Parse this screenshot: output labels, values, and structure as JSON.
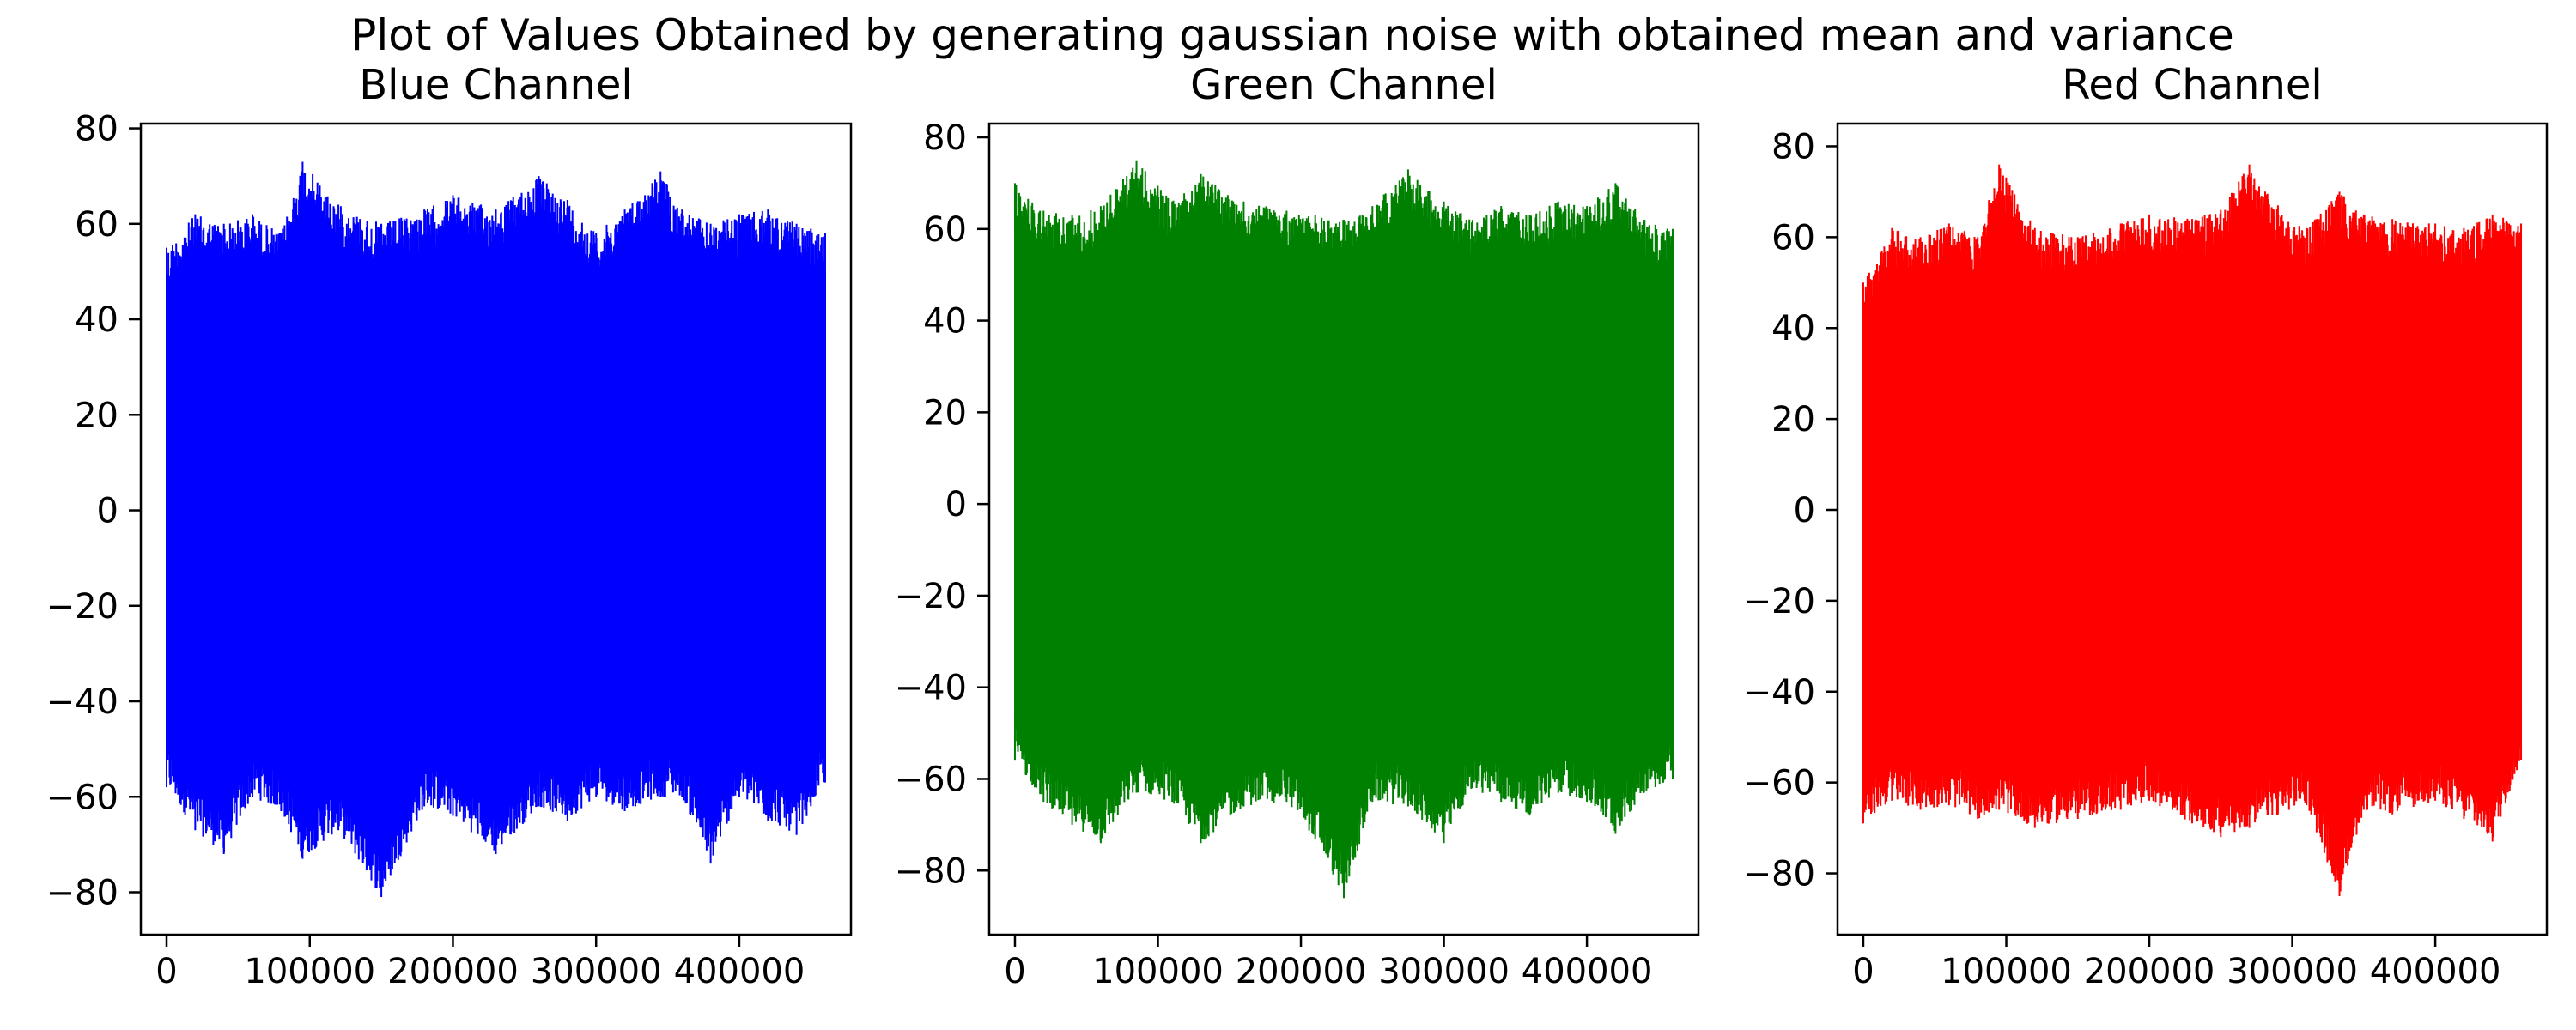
{
  "figure": {
    "title": "Plot of Values Obtained by generating gaussian noise with obtained mean and variance"
  },
  "chart_data": [
    {
      "type": "line",
      "title": "Blue Channel",
      "color": "#0000ff",
      "xlabel": "",
      "ylabel": "",
      "xlim": [
        -18000,
        478000
      ],
      "ylim": [
        -88.9,
        81
      ],
      "xticks": [
        0,
        100000,
        200000,
        300000,
        400000
      ],
      "xtick_labels": [
        "0",
        "100000",
        "200000",
        "300000",
        "400000"
      ],
      "yticks": [
        -80,
        -60,
        -40,
        -20,
        0,
        20,
        40,
        60,
        80
      ],
      "ytick_labels": [
        "−80",
        "−60",
        "−40",
        "−20",
        "0",
        "20",
        "40",
        "60",
        "80"
      ],
      "series": [
        {
          "x_range": [
            0,
            460000
          ],
          "envelope_x": [
            0,
            20000,
            40000,
            60000,
            80000,
            95000,
            120000,
            150000,
            180000,
            200000,
            230000,
            260000,
            280000,
            300000,
            320000,
            345000,
            360000,
            380000,
            400000,
            420000,
            440000,
            460000
          ],
          "upper": [
            55,
            62,
            60,
            62,
            58,
            73,
            64,
            60,
            63,
            66,
            63,
            70,
            65,
            58,
            63,
            71,
            63,
            60,
            62,
            63,
            60,
            58
          ],
          "lower": [
            -58,
            -67,
            -72,
            -60,
            -63,
            -73,
            -67,
            -81,
            -62,
            -64,
            -72,
            -62,
            -65,
            -60,
            -63,
            -60,
            -60,
            -74,
            -60,
            -65,
            -68,
            -57
          ]
        }
      ]
    },
    {
      "type": "line",
      "title": "Green Channel",
      "color": "#008000",
      "xlabel": "",
      "ylabel": "",
      "xlim": [
        -18000,
        478000
      ],
      "ylim": [
        -94,
        83
      ],
      "xticks": [
        0,
        100000,
        200000,
        300000,
        400000
      ],
      "xtick_labels": [
        "0",
        "100000",
        "200000",
        "300000",
        "400000"
      ],
      "yticks": [
        -80,
        -60,
        -40,
        -20,
        0,
        20,
        40,
        60,
        80
      ],
      "ytick_labels": [
        "−80",
        "−60",
        "−40",
        "−20",
        "0",
        "20",
        "40",
        "60",
        "80"
      ],
      "series": [
        {
          "x_range": [
            0,
            460000
          ],
          "envelope_x": [
            0,
            20000,
            40000,
            60000,
            85000,
            110000,
            130000,
            160000,
            190000,
            210000,
            230000,
            250000,
            275000,
            300000,
            320000,
            340000,
            360000,
            380000,
            400000,
            420000,
            440000,
            460000
          ],
          "upper": [
            70,
            64,
            63,
            65,
            75,
            66,
            72,
            66,
            64,
            63,
            62,
            65,
            73,
            66,
            62,
            65,
            63,
            66,
            65,
            70,
            62,
            60
          ],
          "lower": [
            -56,
            -65,
            -70,
            -74,
            -63,
            -65,
            -74,
            -66,
            -65,
            -73,
            -86,
            -65,
            -66,
            -74,
            -62,
            -65,
            -68,
            -63,
            -65,
            -72,
            -63,
            -60
          ]
        }
      ]
    },
    {
      "type": "line",
      "title": "Red Channel",
      "color": "#ff0000",
      "xlabel": "",
      "ylabel": "",
      "xlim": [
        -18000,
        478000
      ],
      "ylim": [
        -93.5,
        85
      ],
      "xticks": [
        0,
        100000,
        200000,
        300000,
        400000
      ],
      "xtick_labels": [
        "0",
        "100000",
        "200000",
        "300000",
        "400000"
      ],
      "yticks": [
        -80,
        -60,
        -40,
        -20,
        0,
        20,
        40,
        60,
        80
      ],
      "ytick_labels": [
        "−80",
        "−60",
        "−40",
        "−20",
        "0",
        "20",
        "40",
        "60",
        "80"
      ],
      "series": [
        {
          "x_range": [
            0,
            460000
          ],
          "envelope_x": [
            0,
            20000,
            40000,
            60000,
            80000,
            95000,
            120000,
            150000,
            180000,
            200000,
            230000,
            250000,
            270000,
            290000,
            310000,
            333000,
            350000,
            370000,
            400000,
            420000,
            440000,
            460000
          ],
          "upper": [
            50,
            62,
            60,
            63,
            60,
            76,
            62,
            60,
            63,
            65,
            64,
            66,
            76,
            67,
            62,
            70,
            65,
            64,
            63,
            62,
            65,
            63
          ],
          "lower": [
            -69,
            -64,
            -66,
            -65,
            -68,
            -66,
            -70,
            -68,
            -66,
            -64,
            -69,
            -72,
            -70,
            -67,
            -65,
            -85,
            -66,
            -67,
            -64,
            -68,
            -73,
            -55
          ]
        }
      ]
    }
  ]
}
